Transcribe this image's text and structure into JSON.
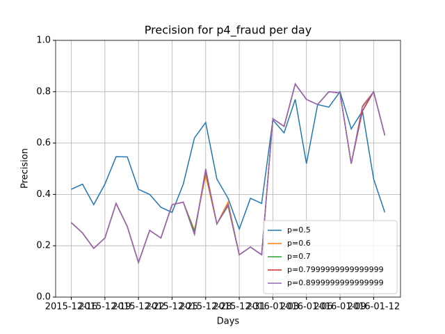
{
  "chart_data": {
    "type": "line",
    "title": "Precision for p4_fraud per day",
    "xlabel": "Days",
    "ylabel": "Precision",
    "x": [
      "2015-12-16",
      "2015-12-17",
      "2015-12-18",
      "2015-12-19",
      "2015-12-20",
      "2015-12-21",
      "2015-12-22",
      "2015-12-23",
      "2015-12-24",
      "2015-12-25",
      "2015-12-26",
      "2015-12-27",
      "2015-12-28",
      "2015-12-29",
      "2015-12-30",
      "2015-12-31",
      "2016-01-01",
      "2016-01-02",
      "2016-01-03",
      "2016-01-04",
      "2016-01-05",
      "2016-01-06",
      "2016-01-07",
      "2016-01-08",
      "2016-01-09",
      "2016-01-10",
      "2016-01-11",
      "2016-01-12",
      "2016-01-13"
    ],
    "xlim": [
      "2015-12-14T14:24",
      "2016-01-14T09:36"
    ],
    "xticks": [
      "2015-12-16",
      "2015-12-19",
      "2015-12-22",
      "2015-12-25",
      "2015-12-28",
      "2015-12-31",
      "2016-01-03",
      "2016-01-06",
      "2016-01-09",
      "2016-01-12"
    ],
    "ylim": [
      0,
      1
    ],
    "yticks": [
      {
        "value": 0,
        "label": "0.0"
      },
      {
        "value": 0.2,
        "label": "0.2"
      },
      {
        "value": 0.4,
        "label": "0.4"
      },
      {
        "value": 0.6,
        "label": "0.6"
      },
      {
        "value": 0.8,
        "label": "0.8"
      },
      {
        "value": 1,
        "label": "1.0"
      }
    ],
    "grid": true,
    "legend": "lower right",
    "series": [
      {
        "name": "p=0.5",
        "color": "#1f77b4",
        "values": [
          0.42,
          0.44,
          0.36,
          0.44,
          0.547,
          0.546,
          0.42,
          0.4,
          0.35,
          0.33,
          0.44,
          0.62,
          0.68,
          0.46,
          0.385,
          0.265,
          0.385,
          0.365,
          0.69,
          0.64,
          0.77,
          0.52,
          0.75,
          0.74,
          0.8,
          0.655,
          0.725,
          0.46,
          0.33
        ]
      },
      {
        "name": "p=0.6",
        "color": "#ff7f0e",
        "values": [
          0.29,
          0.25,
          0.19,
          0.23,
          0.365,
          0.275,
          0.135,
          0.26,
          0.23,
          0.36,
          0.37,
          0.26,
          0.475,
          0.285,
          0.37,
          0.165,
          0.195,
          0.165,
          0.695,
          0.665,
          0.83,
          0.77,
          0.75,
          0.8,
          0.795,
          0.52,
          0.745,
          0.8,
          0.63
        ]
      },
      {
        "name": "p=0.7",
        "color": "#2ca02c",
        "values": [
          0.29,
          0.25,
          0.19,
          0.23,
          0.365,
          0.275,
          0.135,
          0.26,
          0.23,
          0.36,
          0.37,
          0.255,
          0.49,
          0.285,
          0.355,
          0.165,
          0.195,
          0.165,
          0.695,
          0.665,
          0.83,
          0.77,
          0.75,
          0.8,
          0.795,
          0.52,
          0.74,
          0.8,
          0.63
        ]
      },
      {
        "name": "p=0.7999999999999999",
        "color": "#d62728",
        "values": [
          0.29,
          0.25,
          0.19,
          0.23,
          0.365,
          0.275,
          0.135,
          0.26,
          0.23,
          0.36,
          0.37,
          0.245,
          0.495,
          0.285,
          0.36,
          0.165,
          0.195,
          0.165,
          0.695,
          0.665,
          0.83,
          0.77,
          0.75,
          0.8,
          0.795,
          0.52,
          0.725,
          0.8,
          0.63
        ]
      },
      {
        "name": "p=0.8999999999999999",
        "color": "#9467bd",
        "values": [
          0.29,
          0.25,
          0.19,
          0.23,
          0.365,
          0.275,
          0.135,
          0.26,
          0.23,
          0.36,
          0.37,
          0.245,
          0.5,
          0.285,
          0.36,
          0.165,
          0.195,
          0.165,
          0.695,
          0.665,
          0.83,
          0.77,
          0.75,
          0.8,
          0.795,
          0.52,
          0.74,
          0.8,
          0.63
        ]
      }
    ]
  }
}
